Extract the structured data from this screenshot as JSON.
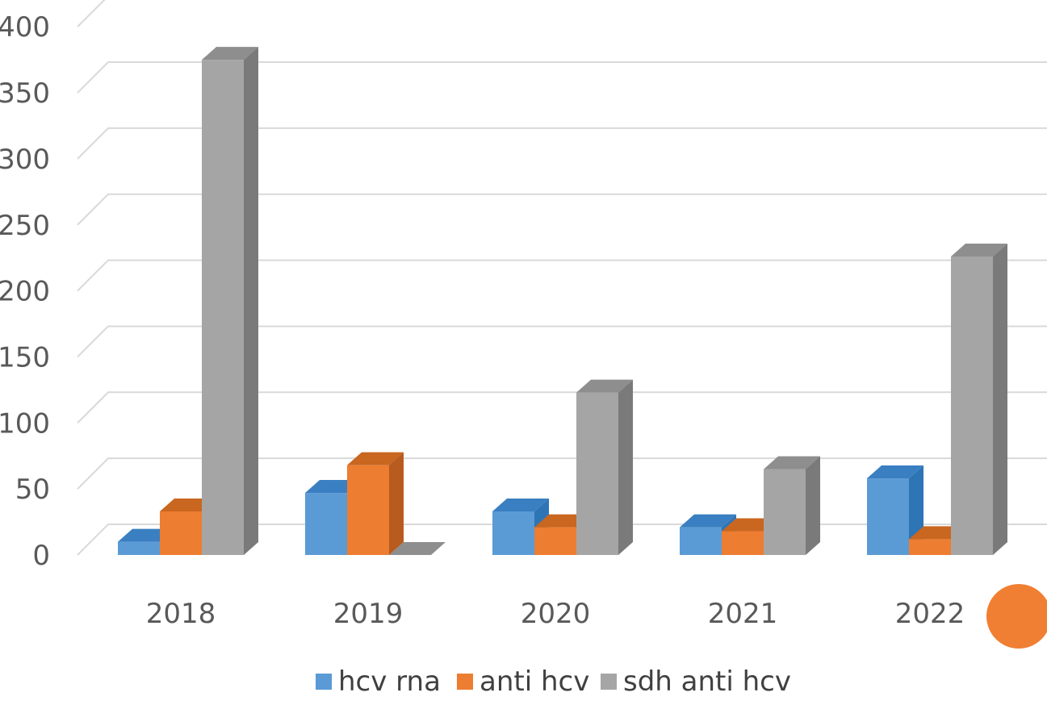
{
  "chart_data": {
    "type": "bar",
    "categories": [
      "2018",
      "2019",
      "2020",
      "2021",
      "2022"
    ],
    "series": [
      {
        "name": "hcv rna",
        "values": [
          10,
          47,
          33,
          21,
          58
        ],
        "color": "#5b9bd5",
        "side": "#2e75b6",
        "top": "#3a7fc1"
      },
      {
        "name": "anti hcv",
        "values": [
          33,
          68,
          21,
          18,
          12
        ],
        "color": "#ed7d31",
        "side": "#b75b1e",
        "top": "#c9661f"
      },
      {
        "name": "sdh anti hcv",
        "values": [
          375,
          0,
          123,
          65,
          226
        ],
        "color": "#a5a5a5",
        "side": "#7a7a7a",
        "top": "#8e8e8e"
      }
    ],
    "yticks": [
      "0",
      "50",
      "100",
      "150",
      "200",
      "250",
      "300",
      "350",
      "400"
    ],
    "ylim": [
      0,
      400
    ],
    "grid": true,
    "legend_position": "bottom"
  }
}
